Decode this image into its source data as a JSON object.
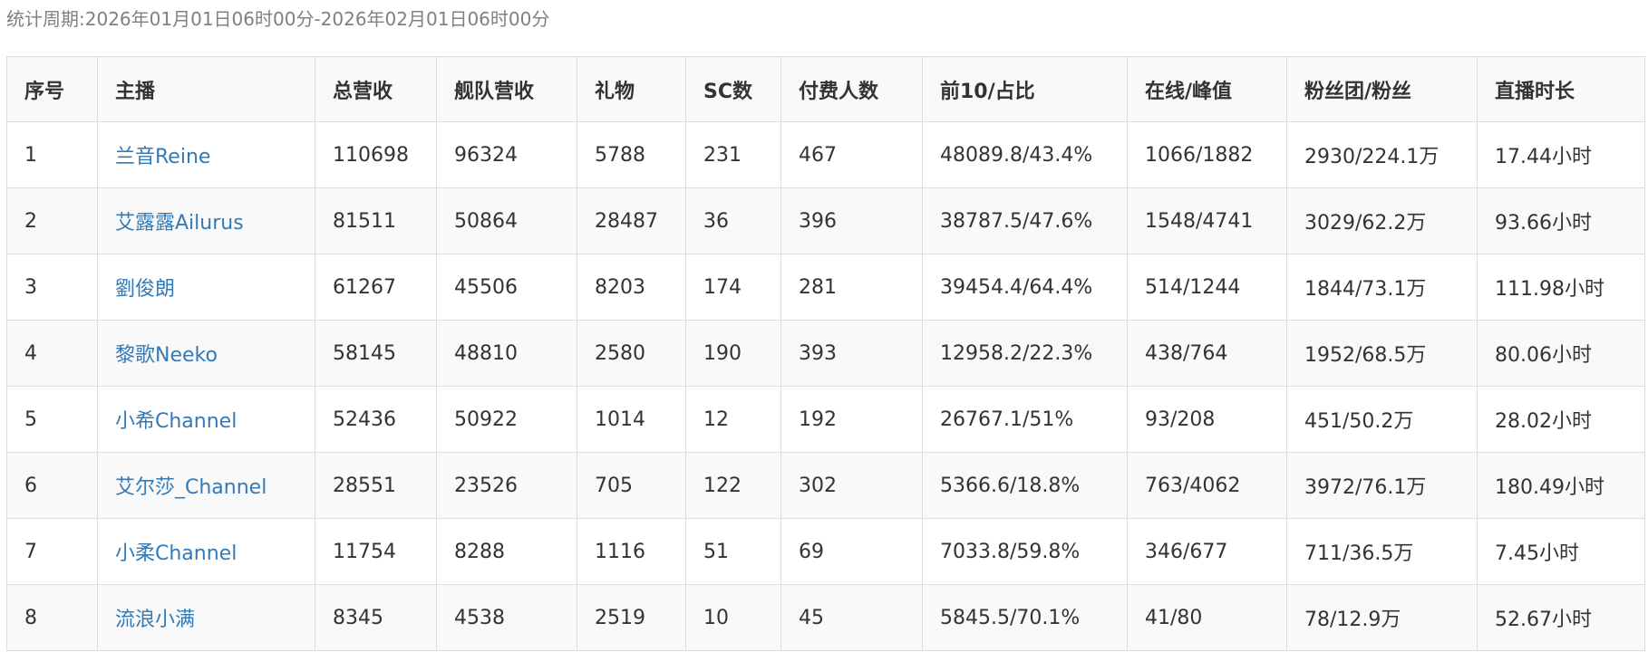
{
  "period": {
    "label": "统计周期:",
    "value": "2026年01月01日06时00分-2026年02月01日06时00分"
  },
  "colors": {
    "link": "#337ab7",
    "border": "#dddddd",
    "stripe": "#f9f9f9",
    "muted": "#808080"
  },
  "table": {
    "headers": [
      "序号",
      "主播",
      "总营收",
      "舰队营收",
      "礼物",
      "SC数",
      "付费人数",
      "前10/占比",
      "在线/峰值",
      "粉丝团/粉丝",
      "直播时长"
    ],
    "rows": [
      {
        "rank": "1",
        "streamer": "兰音Reine",
        "total": "110698",
        "fleet": "96324",
        "gift": "5788",
        "sc": "231",
        "payers": "467",
        "top10": "48089.8/43.4%",
        "online": "1066/1882",
        "fans": "2930/224.1万",
        "duration": "17.44小时"
      },
      {
        "rank": "2",
        "streamer": "艾露露Ailurus",
        "total": "81511",
        "fleet": "50864",
        "gift": "28487",
        "sc": "36",
        "payers": "396",
        "top10": "38787.5/47.6%",
        "online": "1548/4741",
        "fans": "3029/62.2万",
        "duration": "93.66小时"
      },
      {
        "rank": "3",
        "streamer": "劉俊朗",
        "total": "61267",
        "fleet": "45506",
        "gift": "8203",
        "sc": "174",
        "payers": "281",
        "top10": "39454.4/64.4%",
        "online": "514/1244",
        "fans": "1844/73.1万",
        "duration": "111.98小时"
      },
      {
        "rank": "4",
        "streamer": "黎歌Neeko",
        "total": "58145",
        "fleet": "48810",
        "gift": "2580",
        "sc": "190",
        "payers": "393",
        "top10": "12958.2/22.3%",
        "online": "438/764",
        "fans": "1952/68.5万",
        "duration": "80.06小时"
      },
      {
        "rank": "5",
        "streamer": "小希Channel",
        "total": "52436",
        "fleet": "50922",
        "gift": "1014",
        "sc": "12",
        "payers": "192",
        "top10": "26767.1/51%",
        "online": "93/208",
        "fans": "451/50.2万",
        "duration": "28.02小时"
      },
      {
        "rank": "6",
        "streamer": "艾尔莎_Channel",
        "total": "28551",
        "fleet": "23526",
        "gift": "705",
        "sc": "122",
        "payers": "302",
        "top10": "5366.6/18.8%",
        "online": "763/4062",
        "fans": "3972/76.1万",
        "duration": "180.49小时"
      },
      {
        "rank": "7",
        "streamer": "小柔Channel",
        "total": "11754",
        "fleet": "8288",
        "gift": "1116",
        "sc": "51",
        "payers": "69",
        "top10": "7033.8/59.8%",
        "online": "346/677",
        "fans": "711/36.5万",
        "duration": "7.45小时"
      },
      {
        "rank": "8",
        "streamer": "流浪小满",
        "total": "8345",
        "fleet": "4538",
        "gift": "2519",
        "sc": "10",
        "payers": "45",
        "top10": "5845.5/70.1%",
        "online": "41/80",
        "fans": "78/12.9万",
        "duration": "52.67小时"
      }
    ]
  }
}
